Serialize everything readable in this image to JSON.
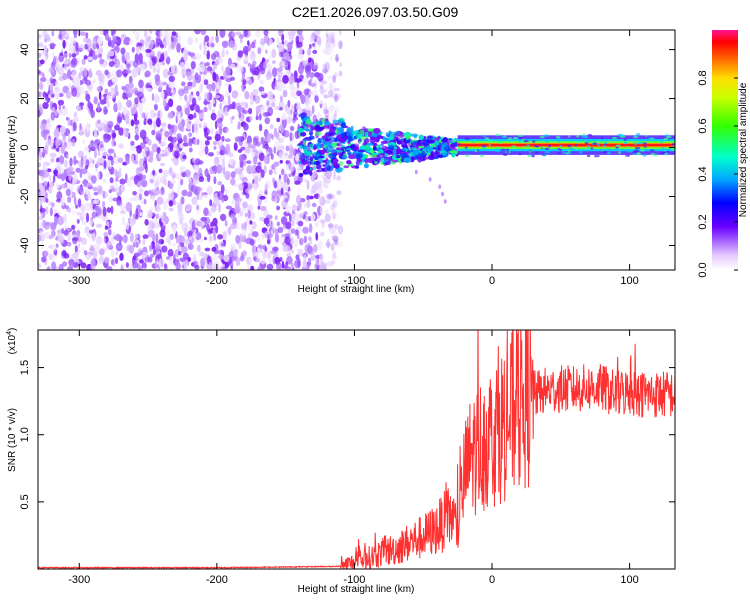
{
  "title": "C2E1.2026.097.03.50.G09",
  "chart_data": [
    {
      "type": "heatmap",
      "panel": "spectrogram",
      "xlabel": "Height of straight line (km)",
      "ylabel": "Frequency (Hz)",
      "xlim": [
        -330,
        133
      ],
      "ylim": [
        -50,
        48
      ],
      "xticks": [
        -300,
        -200,
        -100,
        0,
        100
      ],
      "yticks": [
        -40,
        -20,
        0,
        20,
        40
      ],
      "xtick_labels": [
        "-300",
        "-200",
        "-100",
        "0",
        "100"
      ],
      "ytick_labels": [
        "-40",
        "-20",
        "0",
        "20",
        "40"
      ],
      "noise_region_x": [
        -330,
        -118
      ],
      "transition_region_x": [
        -140,
        -25
      ],
      "stable_line_x": [
        -25,
        133
      ],
      "signal_frequency_hz": 1,
      "colorbar": {
        "label": "Normalized spectral amplitude",
        "range": [
          0,
          1
        ],
        "ticks": [
          0.0,
          0.2,
          0.4,
          0.6,
          0.8
        ],
        "tick_labels": [
          "0.0",
          "0.2",
          "0.4",
          "0.6",
          "0.8"
        ]
      }
    },
    {
      "type": "line",
      "panel": "snr",
      "xlabel": "Height of straight line (km)",
      "ylabel": "SNR (10 * v/v)",
      "scale_label": "(x10",
      "scale_exponent": "4",
      "xlim": [
        -330,
        133
      ],
      "ylim": [
        0,
        1.78
      ],
      "xticks": [
        -300,
        -200,
        -100,
        0,
        100
      ],
      "yticks": [
        0.5,
        1.0,
        1.5
      ],
      "xtick_labels": [
        "-300",
        "-200",
        "-100",
        "0",
        "100"
      ],
      "ytick_labels": [
        "0.5",
        "1.0",
        "1.5"
      ],
      "color": "#ff3030",
      "series": [
        {
          "name": "SNR",
          "x": [
            -330,
            -300,
            -250,
            -200,
            -150,
            -110,
            -100,
            -90,
            -80,
            -70,
            -60,
            -50,
            -40,
            -30,
            -25,
            -20,
            -15,
            -10,
            0,
            10,
            20,
            30,
            40,
            50,
            60,
            70,
            80,
            90,
            100,
            110,
            120,
            133
          ],
          "y": [
            0.01,
            0.01,
            0.01,
            0.01,
            0.015,
            0.02,
            0.05,
            0.08,
            0.12,
            0.15,
            0.2,
            0.24,
            0.3,
            0.4,
            0.3,
            0.7,
            0.85,
            0.9,
            1.0,
            1.1,
            1.22,
            1.3,
            1.33,
            1.34,
            1.34,
            1.35,
            1.35,
            1.3,
            1.32,
            1.3,
            1.3,
            1.3
          ]
        }
      ]
    }
  ]
}
